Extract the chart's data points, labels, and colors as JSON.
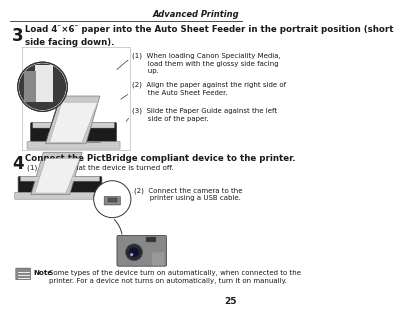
{
  "bg_color": "#ffffff",
  "header_text": "Advanced Printing",
  "page_number": "25",
  "step3_num": "3",
  "step3_title": "Load 4″×6″ paper into the Auto Sheet Feeder in the portrait position (short\nside facing down).",
  "step3_note1": "(1)  When loading Canon Speciality Media,\n       load them with the glossy side facing\n       up.",
  "step3_note2": "(2)  Align the paper against the right side of\n       the Auto Sheet Feeder.",
  "step3_note3": "(3)  Slide the Paper Guide against the left\n       side of the paper.",
  "step4_num": "4",
  "step4_title": "Connect the PictBridge compliant device to the printer.",
  "step4_sub": "(1)   Ensure that the device is turned off.",
  "step4_note2": "(2)  Connect the camera to the\n       printer using a USB cable.",
  "note_text": "Some types of the device turn on automatically, when connected to the\nprinter. For a device not turns on automatically, turn it on manually.",
  "note_label": "Note",
  "title_fontsize": 6.2,
  "body_fontsize": 5.2,
  "note_fontsize": 5.0,
  "step_num_fontsize": 12,
  "header_fontsize": 6.0,
  "page_num_fontsize": 6.5
}
